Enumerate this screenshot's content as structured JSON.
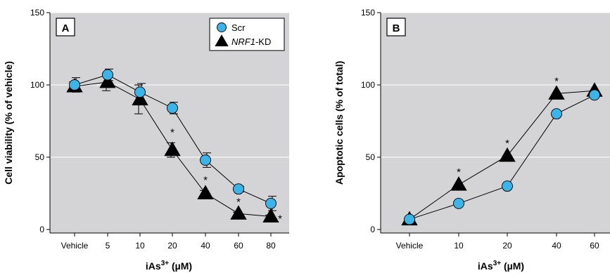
{
  "chart_data": [
    {
      "type": "line",
      "panel_label": "A",
      "xlabel": "iAs",
      "xlabel_sup": "3+",
      "xlabel_unit": " (µM)",
      "ylabel": "Cell viability (% of vehicle)",
      "ylim": [
        0,
        150
      ],
      "yticks": [
        0,
        50,
        100,
        150
      ],
      "categories": [
        "Vehicle",
        "5",
        "10",
        "20",
        "40",
        "60",
        "80"
      ],
      "grid": "horizontal",
      "legend": "top-right",
      "series": [
        {
          "name": "Scr",
          "marker": "circle",
          "color": "#3db4e8",
          "values": [
            100,
            107,
            95,
            84,
            48,
            28,
            18
          ],
          "errors": [
            5,
            4,
            6,
            4,
            5,
            2,
            5
          ]
        },
        {
          "name": "NRF1-KD",
          "marker": "triangle",
          "color": "#000000",
          "values": [
            99,
            102,
            90,
            55,
            25,
            11,
            9
          ],
          "errors": [
            3,
            6,
            10,
            5,
            2,
            1,
            1
          ]
        }
      ],
      "significance": [
        {
          "category": "20",
          "label": "*"
        },
        {
          "category": "40",
          "label": "*"
        },
        {
          "category": "60",
          "label": "*"
        },
        {
          "category": "80",
          "label": "*"
        }
      ]
    },
    {
      "type": "line",
      "panel_label": "B",
      "xlabel": "iAs",
      "xlabel_sup": "3+",
      "xlabel_unit": " (µM)",
      "ylabel": "Apoptotic cells (% of total)",
      "ylim": [
        0,
        150
      ],
      "yticks": [
        0,
        50,
        100,
        150
      ],
      "categories": [
        "Vehicle",
        "10",
        "20",
        "40",
        "60"
      ],
      "grid": "horizontal",
      "series": [
        {
          "name": "Scr",
          "marker": "circle",
          "color": "#3db4e8",
          "values": [
            7,
            18,
            30,
            80,
            93
          ]
        },
        {
          "name": "NRF1-KD",
          "marker": "triangle",
          "color": "#000000",
          "values": [
            7,
            31,
            51,
            94,
            96
          ]
        }
      ],
      "significance": [
        {
          "category": "10",
          "label": "*"
        },
        {
          "category": "20",
          "label": "*"
        },
        {
          "category": "40",
          "label": "*"
        }
      ]
    }
  ]
}
